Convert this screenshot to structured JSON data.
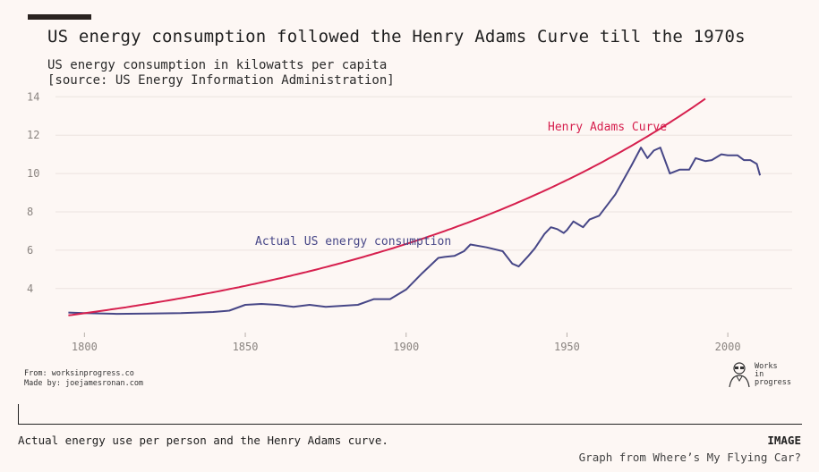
{
  "chart_data": {
    "type": "line",
    "title": "US energy consumption followed the Henry Adams Curve till the 1970s",
    "subtitle": [
      "US energy consumption in kilowatts per capita",
      "[source: US Energy Information Administration]"
    ],
    "xlabel": "",
    "ylabel": "",
    "xlim": [
      1791,
      2020
    ],
    "ylim": [
      1.8,
      14.2
    ],
    "x_ticks": [
      1800,
      1850,
      1900,
      1950,
      2000
    ],
    "y_ticks": [
      4,
      6,
      8,
      10,
      12,
      14
    ],
    "grid": "horizontal",
    "series": [
      {
        "name": "Actual US energy consumption",
        "color": "#474787",
        "x": [
          1795,
          1800,
          1810,
          1820,
          1830,
          1840,
          1845,
          1850,
          1855,
          1860,
          1865,
          1870,
          1875,
          1880,
          1885,
          1890,
          1895,
          1900,
          1905,
          1910,
          1912,
          1915,
          1918,
          1920,
          1925,
          1930,
          1933,
          1935,
          1938,
          1940,
          1943,
          1945,
          1947,
          1949,
          1950,
          1952,
          1953,
          1955,
          1957,
          1960,
          1965,
          1970,
          1973,
          1975,
          1977,
          1979,
          1982,
          1985,
          1988,
          1990,
          1993,
          1995,
          1998,
          2000,
          2003,
          2005,
          2007,
          2009,
          2010
        ],
        "y": [
          2.75,
          2.72,
          2.68,
          2.7,
          2.72,
          2.78,
          2.85,
          3.15,
          3.2,
          3.15,
          3.05,
          3.15,
          3.05,
          3.1,
          3.15,
          3.45,
          3.45,
          3.95,
          4.8,
          5.6,
          5.65,
          5.7,
          5.95,
          6.3,
          6.15,
          5.95,
          5.3,
          5.15,
          5.7,
          6.1,
          6.85,
          7.2,
          7.1,
          6.9,
          7.05,
          7.5,
          7.4,
          7.2,
          7.6,
          7.8,
          8.9,
          10.4,
          11.35,
          10.8,
          11.2,
          11.35,
          10.0,
          10.2,
          10.2,
          10.8,
          10.65,
          10.7,
          11.0,
          10.95,
          10.95,
          10.7,
          10.7,
          10.5,
          9.9
        ]
      },
      {
        "name": "Henry Adams Curve",
        "color": "#d6204e",
        "x": [
          1795,
          1993
        ],
        "growth": "exponential",
        "y": [
          2.6,
          13.9
        ]
      }
    ],
    "annotations": [
      {
        "text": "Henry Adams Curve",
        "color": "#d6204e"
      },
      {
        "text": "Actual US energy consumption",
        "color": "#474787"
      }
    ]
  },
  "credits": [
    "From: worksinprogress.co",
    "Made by: joejamesronan.com"
  ],
  "logo": {
    "text": [
      "Works",
      "in",
      "progress"
    ]
  },
  "caption": {
    "text": "Actual energy use per person and the Henry Adams curve.",
    "tag": "IMAGE",
    "credit": "Graph from Where’s My Flying Car?"
  },
  "colors": {
    "background": "#fdf7f4",
    "actual": "#474787",
    "adams": "#d6204e",
    "grid": "#ece3df"
  }
}
